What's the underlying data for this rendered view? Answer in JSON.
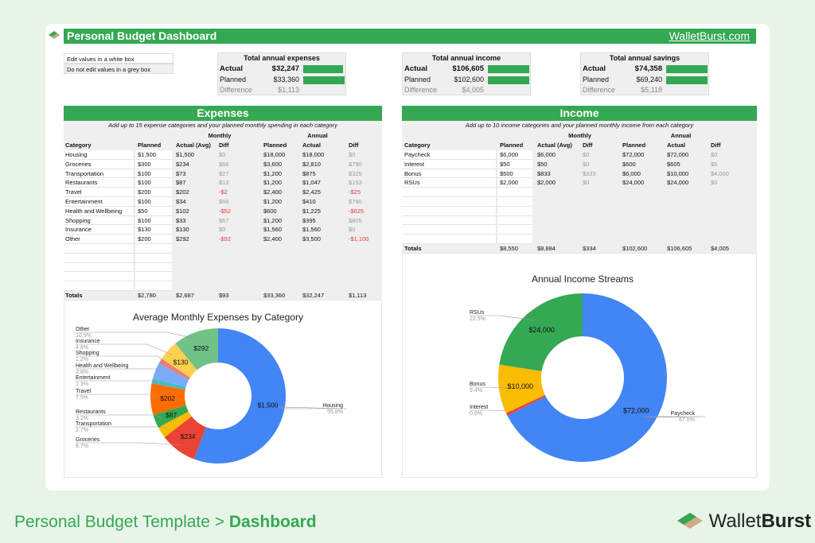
{
  "header": {
    "title": "Personal Budget Dashboard",
    "link": "WalletBurst.com"
  },
  "legend": [
    "Edit values in a white box",
    "Do not edit values in a grey box"
  ],
  "summaries": [
    {
      "title": "Total annual expenses",
      "actual_label": "Actual",
      "actual": "$32,247",
      "planned_label": "Planned",
      "planned": "$33,360",
      "diff_label": "Difference",
      "diff": "$1,113",
      "actual_ratio": 0.967,
      "planned_ratio": 1.0
    },
    {
      "title": "Total annual income",
      "actual_label": "Actual",
      "actual": "$106,605",
      "planned_label": "Planned",
      "planned": "$102,600",
      "diff_label": "Difference",
      "diff": "$4,005",
      "actual_ratio": 1.0,
      "planned_ratio": 1.0
    },
    {
      "title": "Total annual savings",
      "actual_label": "Actual",
      "actual": "$74,358",
      "planned_label": "Planned",
      "planned": "$69,240",
      "diff_label": "Difference",
      "diff": "$5,118",
      "actual_ratio": 1.0,
      "planned_ratio": 1.0
    }
  ],
  "expenses": {
    "title": "Expenses",
    "subtitle": "Add up to 15 expense categories and your planned monthly spending in each category",
    "group_monthly": "Monthly",
    "group_annual": "Annual",
    "columns": [
      "Category",
      "Planned",
      "Actual (Avg)",
      "Diff",
      "Planned",
      "Actual",
      "Diff"
    ],
    "rows": [
      [
        "Housing",
        "$1,500",
        "$1,500",
        "$0",
        "$18,000",
        "$18,000",
        "$0"
      ],
      [
        "Groceries",
        "$300",
        "$234",
        "$66",
        "$3,600",
        "$2,810",
        "$790"
      ],
      [
        "Transportation",
        "$100",
        "$73",
        "$27",
        "$1,200",
        "$875",
        "$325"
      ],
      [
        "Restaurants",
        "$100",
        "$87",
        "$13",
        "$1,200",
        "$1,047",
        "$153"
      ],
      [
        "Travel",
        "$200",
        "$202",
        "-$2",
        "$2,400",
        "$2,425",
        "-$25"
      ],
      [
        "Entertainment",
        "$100",
        "$34",
        "$66",
        "$1,200",
        "$410",
        "$790"
      ],
      [
        "Health and Wellbeing",
        "$50",
        "$102",
        "-$52",
        "$600",
        "$1,225",
        "-$625"
      ],
      [
        "Shopping",
        "$100",
        "$33",
        "$67",
        "$1,200",
        "$395",
        "$805"
      ],
      [
        "Insurance",
        "$130",
        "$130",
        "$0",
        "$1,560",
        "$1,560",
        "$0"
      ],
      [
        "Other",
        "$200",
        "$292",
        "-$92",
        "$2,400",
        "$3,500",
        "-$1,100"
      ]
    ],
    "blank_rows": 5,
    "totals": [
      "Totals",
      "$2,780",
      "$2,687",
      "$93",
      "$33,360",
      "$32,247",
      "$1,113"
    ]
  },
  "income": {
    "title": "Income",
    "subtitle": "Add up to 10 income categories and your planned monthly income from each category",
    "group_monthly": "Monthly",
    "group_annual": "Annual",
    "columns": [
      "Category",
      "Planned",
      "Actual (Avg)",
      "Diff",
      "Planned",
      "Actual",
      "Diff"
    ],
    "rows": [
      [
        "Paycheck",
        "$6,000",
        "$6,000",
        "$0",
        "$72,000",
        "$72,000",
        "$0"
      ],
      [
        "Interest",
        "$50",
        "$50",
        "$0",
        "$600",
        "$605",
        "$5"
      ],
      [
        "Bonus",
        "$500",
        "$833",
        "$333",
        "$6,000",
        "$10,000",
        "$4,000"
      ],
      [
        "RSUs",
        "$2,000",
        "$2,000",
        "$0",
        "$24,000",
        "$24,000",
        "$0"
      ]
    ],
    "blank_rows": 6,
    "totals": [
      "Totals",
      "$8,550",
      "$8,884",
      "$334",
      "$102,600",
      "$106,605",
      "$4,005"
    ]
  },
  "chart_data": [
    {
      "type": "pie",
      "donut": true,
      "title": "Average Monthly Expenses by Category",
      "categories": [
        "Housing",
        "Groceries",
        "Transportation",
        "Restaurants",
        "Travel",
        "Entertainment",
        "Health and Wellbeing",
        "Shopping",
        "Insurance",
        "Other"
      ],
      "values": [
        1500,
        234,
        73,
        87,
        202,
        34,
        102,
        33,
        130,
        292
      ],
      "value_labels": [
        "$1,500",
        "$234",
        "",
        "$87",
        "$202",
        "",
        "",
        "",
        "$130",
        "$292"
      ],
      "percent_labels": [
        "55.8%",
        "8.7%",
        "2.7%",
        "3.2%",
        "7.5%",
        "1.3%",
        "3.8%",
        "1.2%",
        "4.8%",
        "10.9%"
      ],
      "colors": [
        "#4285f4",
        "#ea4335",
        "#fbbc04",
        "#34a853",
        "#ff6d01",
        "#46bdc6",
        "#7baaf7",
        "#f07b72",
        "#fcd04f",
        "#71c287"
      ]
    },
    {
      "type": "pie",
      "donut": true,
      "title": "Annual Income Streams",
      "categories": [
        "Paycheck",
        "Interest",
        "Bonus",
        "RSUs"
      ],
      "values": [
        72000,
        605,
        10000,
        24000
      ],
      "value_labels": [
        "$72,000",
        "",
        "$10,000",
        "$24,000"
      ],
      "percent_labels": [
        "67.5%",
        "0.6%",
        "9.4%",
        "22.5%"
      ],
      "colors": [
        "#4285f4",
        "#ea4335",
        "#fbbc04",
        "#34a853"
      ]
    }
  ],
  "footer": {
    "prefix": "Personal Budget Template > ",
    "page": "Dashboard",
    "brand_a": "Wallet",
    "brand_b": "Burst"
  }
}
